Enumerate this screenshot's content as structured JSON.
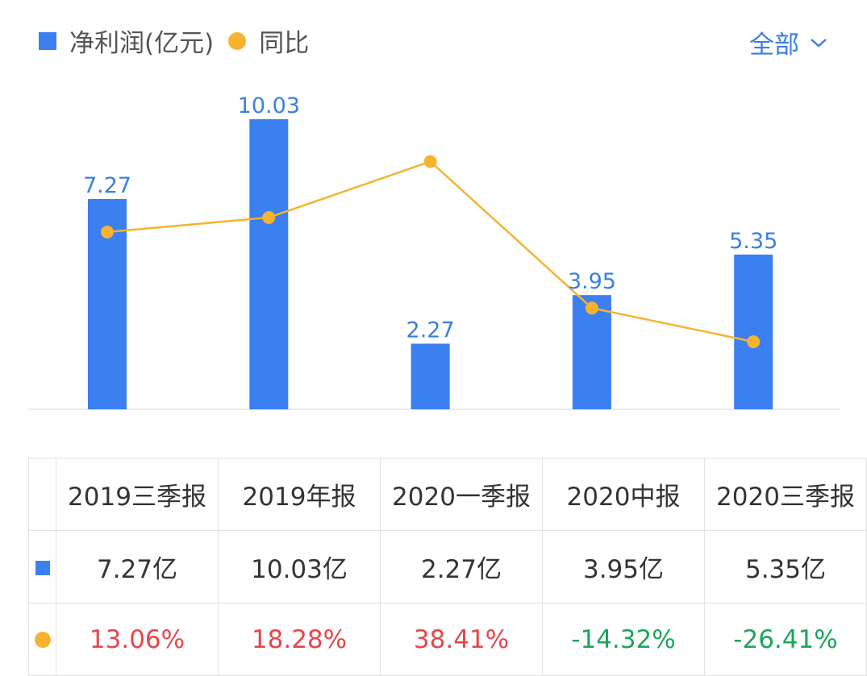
{
  "legend": {
    "bar_label": "净利润(亿元)",
    "line_label": "同比"
  },
  "filter": {
    "label": "全部",
    "icon": "chevron-down-icon"
  },
  "colors": {
    "bar": "#3b7ff0",
    "line": "#f6b330",
    "positive": "#e5474b",
    "negative": "#1ba65a",
    "accent": "#3b7fe0"
  },
  "chart_data": {
    "type": "bar+line",
    "categories": [
      "2019三季报",
      "2019年报",
      "2020一季报",
      "2020中报",
      "2020三季报"
    ],
    "series": [
      {
        "name": "净利润(亿元)",
        "type": "bar",
        "values": [
          7.27,
          10.03,
          2.27,
          3.95,
          5.35
        ],
        "data_labels": [
          "7.27",
          "10.03",
          "2.27",
          "3.95",
          "5.35"
        ]
      },
      {
        "name": "同比",
        "type": "line",
        "unit": "%",
        "values": [
          13.06,
          18.28,
          38.41,
          -14.32,
          -26.41
        ]
      }
    ],
    "grid": false
  },
  "table": {
    "headers": [
      "2019三季报",
      "2019年报",
      "2020一季报",
      "2020中报",
      "2020三季报"
    ],
    "profit_row": [
      "7.27亿",
      "10.03亿",
      "2.27亿",
      "3.95亿",
      "5.35亿"
    ],
    "yoy_row": [
      "13.06%",
      "18.28%",
      "38.41%",
      "-14.32%",
      "-26.41%"
    ]
  }
}
